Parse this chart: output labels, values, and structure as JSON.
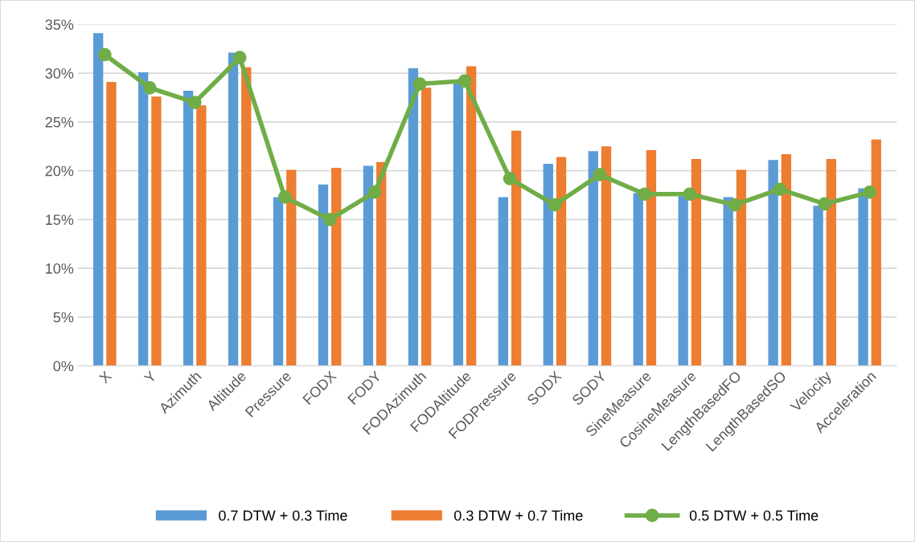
{
  "chart_data": {
    "type": "bar",
    "categories": [
      "X",
      "Y",
      "Azimuth",
      "Altitude",
      "Pressure",
      "FODX",
      "FODY",
      "FODAzimuth",
      "FODAltitude",
      "FODPressure",
      "SODX",
      "SODY",
      "SineMeasure",
      "CosineMeasure",
      "LengthBasedFO",
      "LengthBasedSO",
      "Velocity",
      "Acceleration"
    ],
    "series": [
      {
        "name": "0.7 DTW + 0.3 Time",
        "color": "#5b9bd5",
        "values": [
          34.1,
          30.1,
          28.2,
          32.1,
          17.3,
          18.6,
          20.5,
          30.5,
          29.0,
          17.3,
          20.7,
          22.0,
          17.7,
          17.4,
          17.3,
          21.1,
          16.4,
          18.2
        ]
      },
      {
        "name": "0.3 DTW + 0.7 Time",
        "color": "#ed7d31",
        "values": [
          29.1,
          27.6,
          26.7,
          30.6,
          20.1,
          20.3,
          20.9,
          28.5,
          30.7,
          24.1,
          21.4,
          22.5,
          22.1,
          21.2,
          20.1,
          21.7,
          21.2,
          23.2
        ]
      },
      {
        "name": "0.5 DTW + 0.5 Time",
        "color": "#70ad47",
        "type": "line",
        "marker": "circle",
        "values": [
          31.9,
          28.5,
          27.0,
          31.6,
          17.3,
          15.0,
          17.8,
          28.9,
          29.2,
          19.2,
          16.5,
          19.6,
          17.6,
          17.6,
          16.5,
          18.1,
          16.6,
          17.8
        ]
      }
    ],
    "ylim": [
      0,
      35
    ],
    "yticks": [
      {
        "value": 0,
        "label": "0%"
      },
      {
        "value": 5,
        "label": "5%"
      },
      {
        "value": 10,
        "label": "10%"
      },
      {
        "value": 15,
        "label": "15%"
      },
      {
        "value": 20,
        "label": "20%"
      },
      {
        "value": 25,
        "label": "25%"
      },
      {
        "value": 30,
        "label": "30%"
      },
      {
        "value": 35,
        "label": "35%"
      }
    ],
    "grid": "y",
    "legend": "bottom"
  }
}
